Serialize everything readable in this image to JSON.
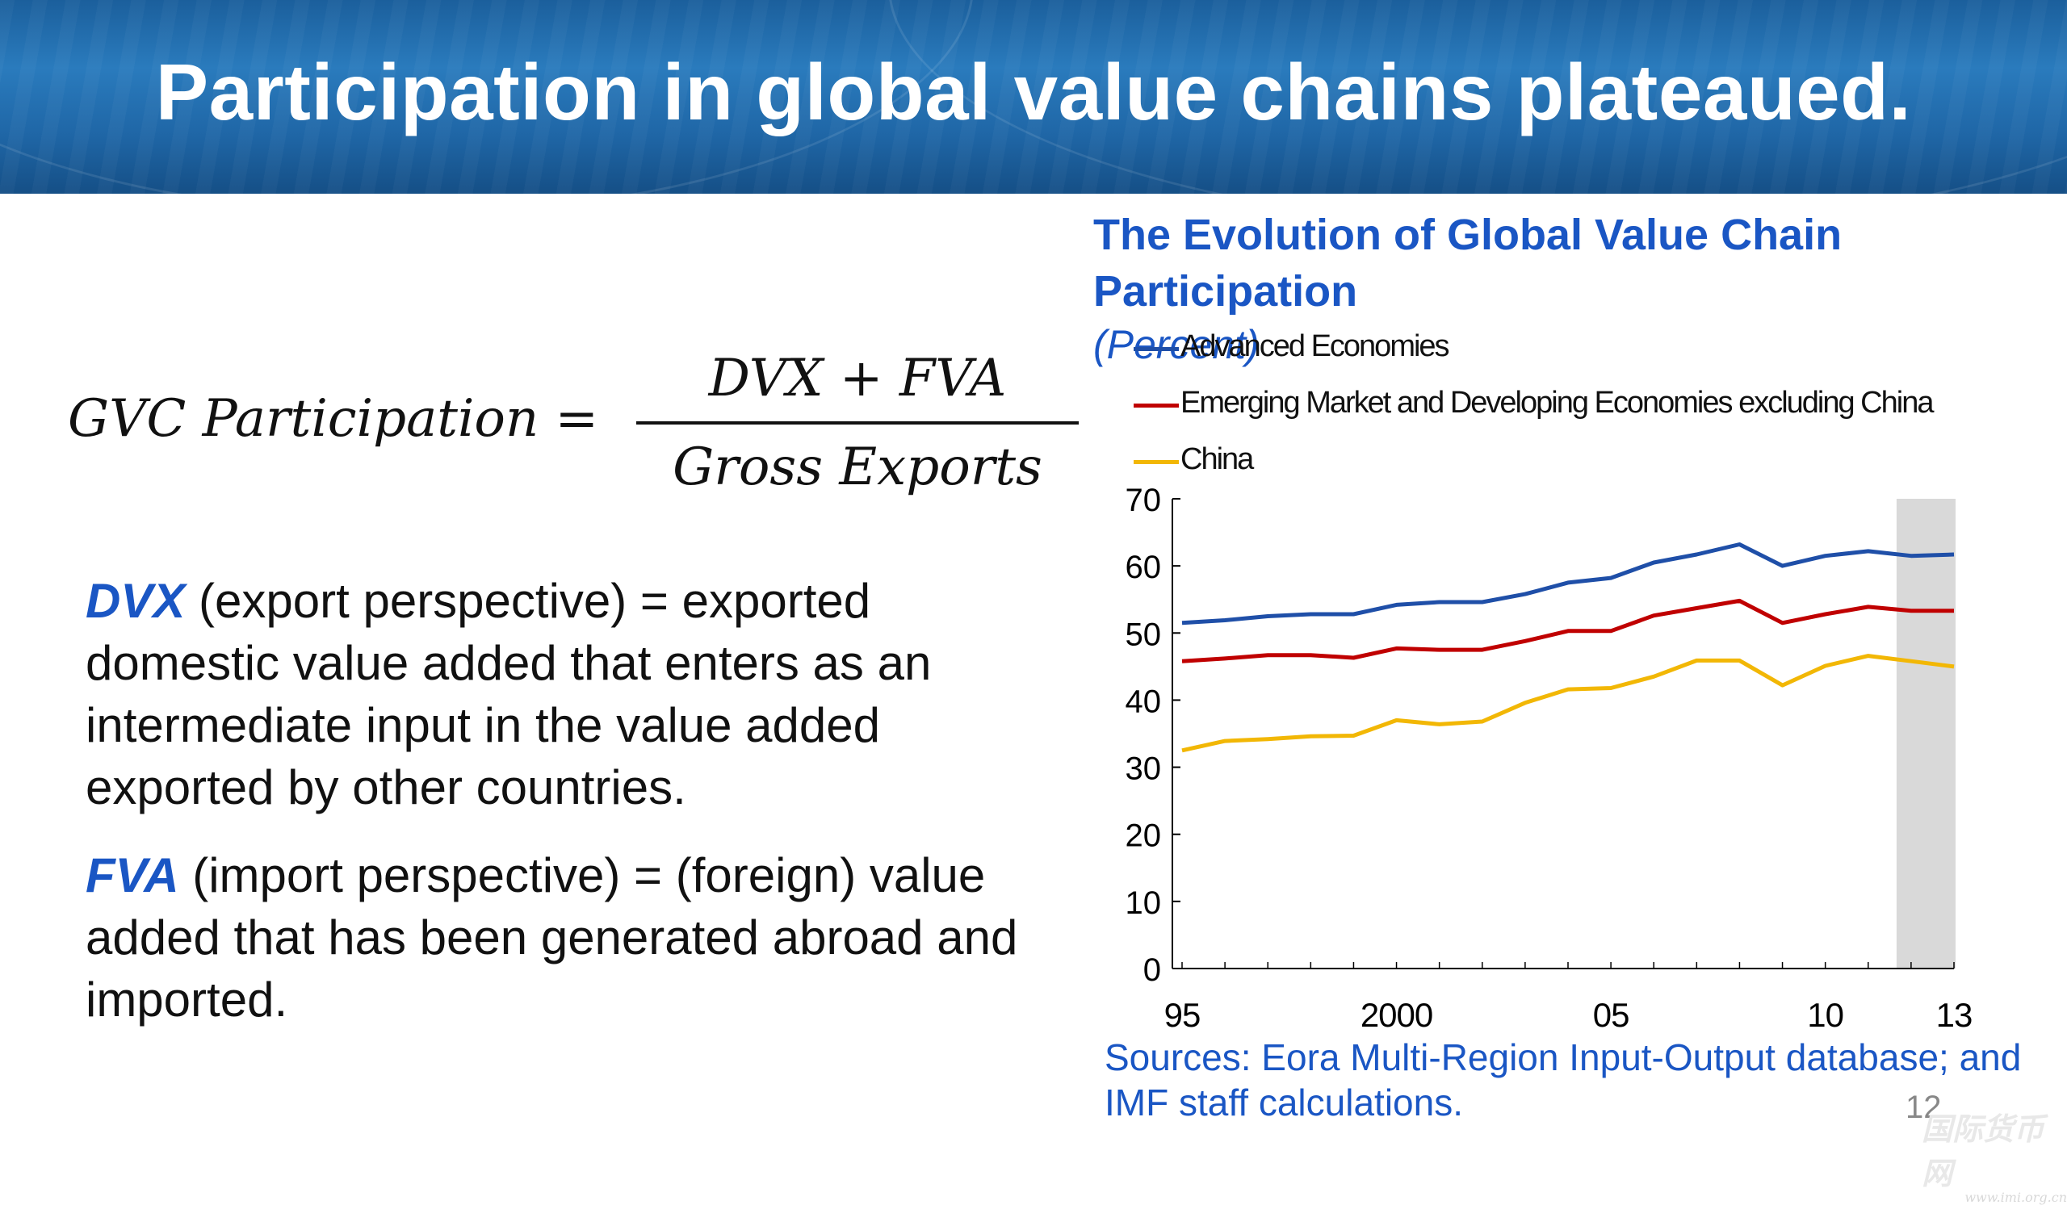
{
  "slide": {
    "title": "Participation in global value chains plateaued.",
    "page_number": "12"
  },
  "formula": {
    "lhs": "GVC Participation =",
    "numerator": "DVX + FVA",
    "denominator": "Gross Exports"
  },
  "definitions": [
    {
      "term": "DVX",
      "text": " (export perspective) =  exported domestic value added that enters as an intermediate input in the value added exported by other countries."
    },
    {
      "term": "FVA",
      "text": " (import perspective) = (foreign) value added that has been generated abroad and imported."
    }
  ],
  "chart_title": "The Evolution of Global Value Chain Participation",
  "chart_subtitle": "(Percent)",
  "sources": "Sources: Eora Multi-Region Input-Output database; and IMF staff calculations.",
  "watermark": {
    "text": "国际货币网",
    "url": "www.imi.org.cn"
  },
  "colors": {
    "title_blue": "#1a56c4",
    "advanced": "#1f4fa8",
    "emerging": "#c00000",
    "china": "#f2b705",
    "shade": "#d9d9d9"
  },
  "chart_data": {
    "type": "line",
    "x": [
      1995,
      1996,
      1997,
      1998,
      1999,
      2000,
      2001,
      2002,
      2003,
      2004,
      2005,
      2006,
      2007,
      2008,
      2009,
      2010,
      2011,
      2012,
      2013
    ],
    "x_tick_values": [
      1995,
      2000,
      2005,
      2010,
      2013
    ],
    "x_tick_labels": [
      "95",
      "2000",
      "05",
      "10",
      "13"
    ],
    "ylim": [
      0,
      70
    ],
    "y_ticks": [
      0,
      10,
      20,
      30,
      40,
      50,
      60,
      70
    ],
    "shaded_region": [
      2012,
      2013
    ],
    "legend_position": "top-left",
    "series": [
      {
        "name": "Advanced Economies",
        "color": "#1f4fa8",
        "values": [
          51.5,
          51.9,
          52.5,
          52.8,
          52.8,
          54.2,
          54.6,
          54.6,
          55.8,
          57.5,
          58.2,
          60.5,
          61.7,
          63.2,
          60.0,
          61.5,
          62.2,
          61.5,
          61.7
        ]
      },
      {
        "name": "Emerging Market and Developing Economies excluding China",
        "color": "#c00000",
        "values": [
          45.8,
          46.2,
          46.7,
          46.7,
          46.3,
          47.7,
          47.5,
          47.5,
          48.8,
          50.3,
          50.3,
          52.6,
          53.7,
          54.8,
          51.5,
          52.8,
          53.9,
          53.3,
          53.3
        ]
      },
      {
        "name": "China",
        "color": "#f2b705",
        "values": [
          32.5,
          33.9,
          34.2,
          34.6,
          34.7,
          37.0,
          36.4,
          36.8,
          39.6,
          41.6,
          41.8,
          43.5,
          45.9,
          45.9,
          42.2,
          45.1,
          46.6,
          45.8,
          45.0
        ]
      }
    ]
  }
}
